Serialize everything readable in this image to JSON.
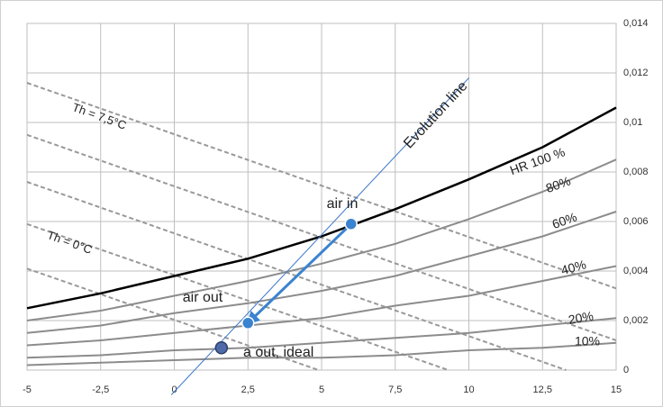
{
  "chart_data": {
    "type": "psychrometric",
    "xlim": [
      -5,
      15
    ],
    "ylim": [
      0,
      0.014
    ],
    "xticks": [
      -5,
      {
        "value": -2.5,
        "label": "-2,5"
      },
      0,
      {
        "value": 2.5,
        "label": "2,5"
      },
      5,
      {
        "value": 7.5,
        "label": "7,5"
      },
      10,
      {
        "value": 12.5,
        "label": "12,5"
      },
      15
    ],
    "yticks": [
      0,
      {
        "value": 0.002,
        "label": "0,002"
      },
      {
        "value": 0.004,
        "label": "0,004"
      },
      {
        "value": 0.006,
        "label": "0,006"
      },
      {
        "value": 0.008,
        "label": "0,008"
      },
      {
        "value": 0.01,
        "label": "0,01"
      },
      {
        "value": 0.012,
        "label": "0,012"
      },
      {
        "value": 0.014,
        "label": "0,014"
      }
    ],
    "grid": true,
    "series": [
      {
        "name": "HR 100 %",
        "color": "#000000",
        "x": [
          -5,
          -2.5,
          0,
          2.5,
          5,
          7.5,
          10,
          12.5,
          15
        ],
        "values": [
          0.0025,
          0.0031,
          0.0038,
          0.0045,
          0.0054,
          0.0065,
          0.0077,
          0.009,
          0.0106
        ]
      },
      {
        "name": "80%",
        "color": "#8c8c8c",
        "x": [
          -5,
          -2.5,
          0,
          2.5,
          5,
          7.5,
          10,
          12.5,
          15
        ],
        "values": [
          0.002,
          0.0024,
          0.003,
          0.0036,
          0.0043,
          0.0051,
          0.0061,
          0.0072,
          0.0085
        ]
      },
      {
        "name": "60%",
        "color": "#8c8c8c",
        "x": [
          -5,
          -2.5,
          0,
          2.5,
          5,
          7.5,
          10,
          12.5,
          15
        ],
        "values": [
          0.0015,
          0.0018,
          0.0023,
          0.0027,
          0.0032,
          0.0038,
          0.0046,
          0.0054,
          0.0064
        ]
      },
      {
        "name": "40%",
        "color": "#8c8c8c",
        "x": [
          -5,
          -2.5,
          0,
          2.5,
          5,
          7.5,
          10,
          12.5,
          15
        ],
        "values": [
          0.001,
          0.0012,
          0.0015,
          0.0018,
          0.0021,
          0.0026,
          0.003,
          0.0036,
          0.0042
        ]
      },
      {
        "name": "20%",
        "color": "#8c8c8c",
        "x": [
          -5,
          -2.5,
          0,
          2.5,
          5,
          7.5,
          10,
          12.5,
          15
        ],
        "values": [
          0.0005,
          0.0006,
          0.0008,
          0.0009,
          0.0011,
          0.0013,
          0.0015,
          0.0018,
          0.0021
        ]
      },
      {
        "name": "10%",
        "color": "#8c8c8c",
        "x": [
          -5,
          -2.5,
          0,
          2.5,
          5,
          7.5,
          10,
          12.5,
          15
        ],
        "values": [
          0.0002,
          0.0003,
          0.0004,
          0.0005,
          0.0005,
          0.0006,
          0.0008,
          0.0009,
          0.0011
        ]
      }
    ],
    "wet_bulb_lines": {
      "color": "#999999",
      "lines": [
        {
          "x": [
            -5,
            15
          ],
          "values": [
            0.0116,
            0.0033
          ]
        },
        {
          "x": [
            -5,
            15
          ],
          "values": [
            0.0095,
            0.0012
          ]
        },
        {
          "x": [
            -5,
            13.3
          ],
          "values": [
            0.0076,
            0
          ]
        },
        {
          "x": [
            -5,
            9.3
          ],
          "values": [
            0.0059,
            0
          ]
        },
        {
          "x": [
            -5,
            4.9
          ],
          "values": [
            0.0041,
            0
          ]
        }
      ]
    },
    "annotations": [
      "Th = 7,5°C",
      "Th = 0°C"
    ],
    "evolution_line": {
      "label": "Evolution line",
      "color": "#3c78c8",
      "x": [
        -0.1,
        10
      ],
      "values": [
        -0.001,
        0.0118
      ]
    },
    "points": [
      {
        "label": "air in",
        "x": 6,
        "y": 0.0059,
        "color": "#3a83d0"
      },
      {
        "label": "air out",
        "x": 2.5,
        "y": 0.0019,
        "color": "#3a83d0"
      },
      {
        "label": "a out, ideal",
        "x": 1.6,
        "y": 0.0009,
        "color": "#4f6aa8"
      }
    ]
  }
}
